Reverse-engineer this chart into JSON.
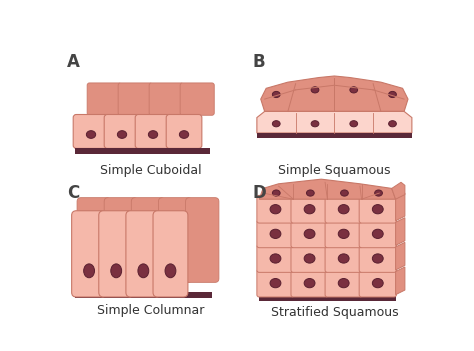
{
  "background_color": "#ffffff",
  "cell_fill": "#f5b8aa",
  "cell_fill_dark": "#e09080",
  "cell_fill_light": "#fcd5cc",
  "cell_stroke": "#c87868",
  "nucleus_fill": "#7a3040",
  "nucleus_stroke": "#5a2030",
  "base_fill": "#5a2838",
  "label_A": "A",
  "label_B": "B",
  "label_C": "C",
  "label_D": "D",
  "text_A": "Simple Cuboidal",
  "text_B": "Simple Squamous",
  "text_C": "Simple Columnar",
  "text_D": "Stratified Squamous",
  "font_size_label": 12,
  "font_size_text": 9
}
